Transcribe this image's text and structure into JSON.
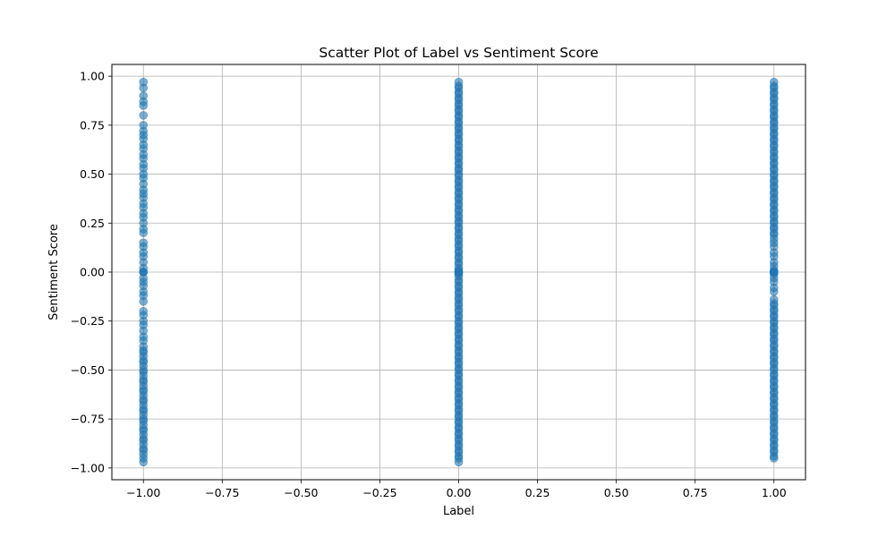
{
  "chart_data": {
    "type": "scatter",
    "title": "Scatter Plot of Label vs Sentiment Score",
    "xlabel": "Label",
    "ylabel": "Sentiment Score",
    "xlim": [
      -1.1,
      1.1
    ],
    "ylim": [
      -1.06,
      1.06
    ],
    "grid": true,
    "legend": "none",
    "marker_color": "#1f77b4",
    "marker_alpha": 0.6,
    "x_ticks": [
      {
        "value": -1.0,
        "label": "−1.00"
      },
      {
        "value": -0.75,
        "label": "−0.75"
      },
      {
        "value": -0.5,
        "label": "−0.50"
      },
      {
        "value": -0.25,
        "label": "−0.25"
      },
      {
        "value": 0.0,
        "label": "0.00"
      },
      {
        "value": 0.25,
        "label": "0.25"
      },
      {
        "value": 0.5,
        "label": "0.50"
      },
      {
        "value": 0.75,
        "label": "0.75"
      },
      {
        "value": 1.0,
        "label": "1.00"
      }
    ],
    "y_ticks": [
      {
        "value": -1.0,
        "label": "−1.00"
      },
      {
        "value": -0.75,
        "label": "−0.75"
      },
      {
        "value": -0.5,
        "label": "−0.50"
      },
      {
        "value": -0.25,
        "label": "−0.25"
      },
      {
        "value": 0.0,
        "label": "0.00"
      },
      {
        "value": 0.25,
        "label": "0.25"
      },
      {
        "value": 0.5,
        "label": "0.50"
      },
      {
        "value": 0.75,
        "label": "0.75"
      },
      {
        "value": 1.0,
        "label": "1.00"
      }
    ],
    "series": [
      {
        "x": -1,
        "y": [
          -0.97,
          -0.95,
          -0.93,
          -0.91,
          -0.9,
          -0.88,
          -0.86,
          -0.85,
          -0.83,
          -0.81,
          -0.8,
          -0.78,
          -0.76,
          -0.75,
          -0.73,
          -0.71,
          -0.7,
          -0.68,
          -0.66,
          -0.65,
          -0.63,
          -0.61,
          -0.6,
          -0.58,
          -0.56,
          -0.55,
          -0.53,
          -0.51,
          -0.5,
          -0.48,
          -0.46,
          -0.45,
          -0.43,
          -0.41,
          -0.4,
          -0.38,
          -0.35,
          -0.33,
          -0.3,
          -0.27,
          -0.25,
          -0.22,
          -0.2,
          -0.15,
          -0.12,
          -0.1,
          -0.07,
          -0.05,
          -0.03,
          0.0,
          0.0,
          0.0,
          0.02,
          0.05,
          0.08,
          0.1,
          0.13,
          0.15,
          0.2,
          0.22,
          0.25,
          0.28,
          0.3,
          0.33,
          0.35,
          0.38,
          0.4,
          0.42,
          0.45,
          0.48,
          0.5,
          0.53,
          0.55,
          0.58,
          0.6,
          0.63,
          0.65,
          0.68,
          0.7,
          0.72,
          0.75,
          0.8,
          0.85,
          0.87,
          0.9,
          0.94,
          0.97
        ]
      },
      {
        "x": 0,
        "y": [
          -0.97,
          -0.95,
          -0.94,
          -0.92,
          -0.91,
          -0.89,
          -0.88,
          -0.86,
          -0.85,
          -0.83,
          -0.82,
          -0.8,
          -0.79,
          -0.77,
          -0.76,
          -0.74,
          -0.73,
          -0.71,
          -0.7,
          -0.68,
          -0.67,
          -0.65,
          -0.64,
          -0.62,
          -0.61,
          -0.59,
          -0.58,
          -0.56,
          -0.55,
          -0.53,
          -0.52,
          -0.5,
          -0.49,
          -0.47,
          -0.46,
          -0.44,
          -0.43,
          -0.41,
          -0.4,
          -0.38,
          -0.37,
          -0.35,
          -0.34,
          -0.32,
          -0.31,
          -0.29,
          -0.28,
          -0.26,
          -0.25,
          -0.23,
          -0.22,
          -0.2,
          -0.19,
          -0.17,
          -0.16,
          -0.14,
          -0.13,
          -0.11,
          -0.1,
          -0.08,
          -0.07,
          -0.05,
          -0.04,
          -0.02,
          -0.01,
          0.0,
          0.0,
          0.0,
          0.01,
          0.02,
          0.04,
          0.05,
          0.07,
          0.08,
          0.1,
          0.11,
          0.13,
          0.14,
          0.16,
          0.17,
          0.19,
          0.2,
          0.22,
          0.23,
          0.25,
          0.26,
          0.28,
          0.29,
          0.31,
          0.32,
          0.34,
          0.35,
          0.37,
          0.38,
          0.4,
          0.41,
          0.43,
          0.44,
          0.46,
          0.47,
          0.49,
          0.5,
          0.52,
          0.53,
          0.55,
          0.56,
          0.58,
          0.59,
          0.61,
          0.62,
          0.64,
          0.65,
          0.67,
          0.68,
          0.7,
          0.71,
          0.73,
          0.74,
          0.76,
          0.77,
          0.79,
          0.8,
          0.82,
          0.83,
          0.85,
          0.86,
          0.88,
          0.89,
          0.91,
          0.92,
          0.94,
          0.95,
          0.97
        ]
      },
      {
        "x": 1,
        "y": [
          -0.95,
          -0.94,
          -0.92,
          -0.91,
          -0.89,
          -0.88,
          -0.86,
          -0.85,
          -0.83,
          -0.82,
          -0.8,
          -0.79,
          -0.77,
          -0.76,
          -0.74,
          -0.73,
          -0.71,
          -0.7,
          -0.68,
          -0.67,
          -0.65,
          -0.64,
          -0.62,
          -0.61,
          -0.59,
          -0.58,
          -0.56,
          -0.55,
          -0.53,
          -0.52,
          -0.5,
          -0.49,
          -0.47,
          -0.46,
          -0.44,
          -0.43,
          -0.41,
          -0.4,
          -0.38,
          -0.37,
          -0.35,
          -0.34,
          -0.32,
          -0.31,
          -0.29,
          -0.28,
          -0.26,
          -0.25,
          -0.23,
          -0.22,
          -0.2,
          -0.19,
          -0.17,
          -0.16,
          -0.14,
          -0.1,
          -0.08,
          -0.05,
          -0.03,
          -0.01,
          0.0,
          0.0,
          0.0,
          0.0,
          0.01,
          0.03,
          0.05,
          0.08,
          0.1,
          0.13,
          0.15,
          0.17,
          0.19,
          0.2,
          0.22,
          0.23,
          0.25,
          0.26,
          0.28,
          0.29,
          0.31,
          0.32,
          0.34,
          0.35,
          0.37,
          0.38,
          0.4,
          0.41,
          0.43,
          0.44,
          0.46,
          0.47,
          0.49,
          0.5,
          0.52,
          0.53,
          0.55,
          0.56,
          0.58,
          0.59,
          0.61,
          0.62,
          0.64,
          0.65,
          0.67,
          0.68,
          0.7,
          0.71,
          0.73,
          0.74,
          0.76,
          0.77,
          0.79,
          0.8,
          0.82,
          0.83,
          0.85,
          0.86,
          0.88,
          0.89,
          0.91,
          0.92,
          0.94,
          0.95,
          0.97
        ]
      }
    ]
  }
}
